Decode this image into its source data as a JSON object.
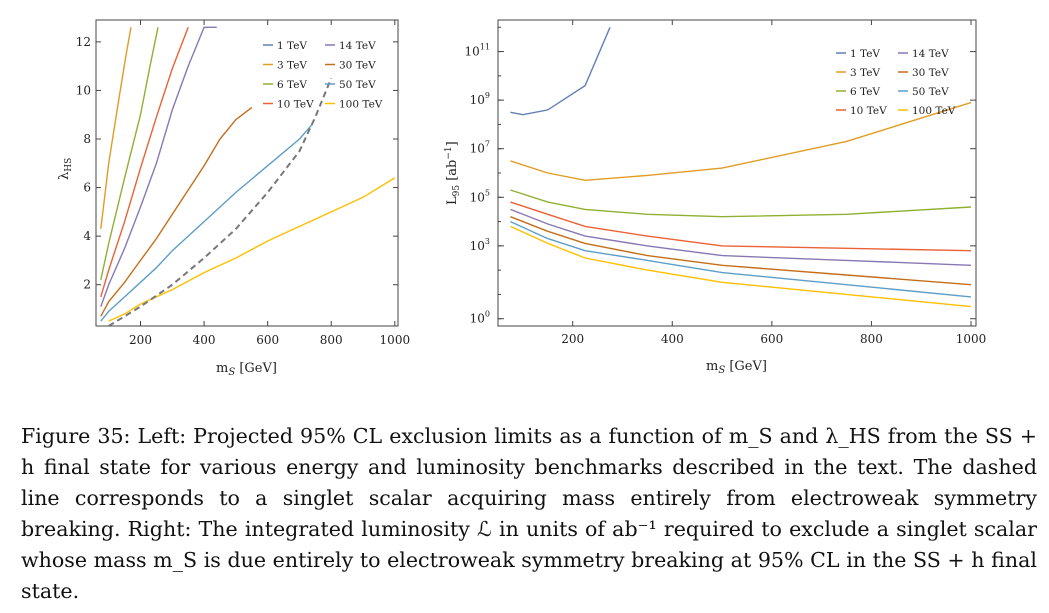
{
  "colors": {
    "1 TeV": "#5e81b5",
    "3 TeV": "#e19c24",
    "6 TeV": "#8fb032",
    "10 TeV": "#eb6235",
    "14 TeV": "#8778b3",
    "30 TeV": "#c56e1a",
    "50 TeV": "#5d9ec7",
    "100 TeV": "#ffbf00",
    "ewsb": "#777777"
  },
  "legend_labels": {
    "left": [
      "1 TeV",
      "14 TeV",
      "3 TeV",
      "30 TeV",
      "6 TeV",
      "50 TeV",
      "10 TeV",
      "100 TeV"
    ],
    "right": [
      "1 TeV",
      "14 TeV",
      "3 TeV",
      "30 TeV",
      "6 TeV",
      "50 TeV",
      "10 TeV",
      "100 TeV"
    ]
  },
  "chart_data": [
    {
      "type": "line",
      "xlabel": "m_S [GeV]",
      "ylabel": "λ_HS",
      "xlim": [
        60,
        1010
      ],
      "ylim": [
        0.3,
        12.9
      ],
      "xticks": [
        "200",
        "400",
        "600",
        "800",
        "1000"
      ],
      "yticks": [
        "2",
        "4",
        "6",
        "8",
        "10",
        "12"
      ],
      "legend_position": "top-right",
      "series": [
        {
          "name": "1 TeV",
          "x": [],
          "y": []
        },
        {
          "name": "3 TeV",
          "x": [
            75,
            100,
            130,
            155,
            170
          ],
          "y": [
            4.3,
            7.0,
            9.5,
            11.5,
            12.6
          ]
        },
        {
          "name": "6 TeV",
          "x": [
            75,
            100,
            150,
            200,
            230,
            255
          ],
          "y": [
            2.2,
            3.7,
            6.4,
            9.0,
            11.0,
            12.6
          ]
        },
        {
          "name": "10 TeV",
          "x": [
            75,
            100,
            150,
            200,
            250,
            300,
            350
          ],
          "y": [
            1.5,
            2.6,
            4.6,
            6.8,
            8.9,
            10.9,
            12.6
          ]
        },
        {
          "name": "14 TeV",
          "x": [
            75,
            100,
            150,
            200,
            250,
            300,
            350,
            400,
            440
          ],
          "y": [
            1.1,
            2.0,
            3.5,
            5.2,
            7.0,
            9.2,
            11.0,
            12.6,
            12.6
          ]
        },
        {
          "name": "30 TeV",
          "x": [
            75,
            100,
            150,
            200,
            250,
            300,
            350,
            400,
            450,
            500,
            550
          ],
          "y": [
            0.7,
            1.3,
            2.1,
            3.0,
            3.9,
            4.9,
            5.9,
            6.9,
            8.0,
            8.8,
            9.3
          ]
        },
        {
          "name": "50 TeV",
          "x": [
            75,
            100,
            150,
            200,
            250,
            300,
            350,
            400,
            500,
            600,
            700,
            740
          ],
          "y": [
            0.5,
            0.9,
            1.5,
            2.1,
            2.7,
            3.4,
            4.0,
            4.6,
            5.8,
            6.9,
            8.0,
            8.6
          ]
        },
        {
          "name": "100 TeV",
          "x": [
            100,
            150,
            200,
            250,
            300,
            400,
            500,
            600,
            700,
            800,
            900,
            1000
          ],
          "y": [
            0.5,
            0.8,
            1.2,
            1.5,
            1.8,
            2.5,
            3.1,
            3.8,
            4.4,
            5.0,
            5.6,
            6.4
          ]
        },
        {
          "name": "EWSB (dashed)",
          "x": [
            100,
            200,
            300,
            400,
            500,
            600,
            700,
            750,
            800
          ],
          "y": [
            0.3,
            1.1,
            2.0,
            3.1,
            4.3,
            5.8,
            7.5,
            8.9,
            10.5
          ]
        }
      ]
    },
    {
      "type": "line",
      "xlabel": "m_S [GeV]",
      "ylabel": "L_95 [ab^-1]",
      "yscale": "log",
      "xlim": [
        50,
        1010
      ],
      "ylim_log10": [
        -0.3,
        12.3
      ],
      "xticks": [
        "200",
        "400",
        "600",
        "800",
        "1000"
      ],
      "yticks": [
        "10^0",
        "10^3",
        "10^5",
        "10^7",
        "10^9",
        "10^11"
      ],
      "legend_position": "top-right",
      "series": [
        {
          "name": "1 TeV",
          "x": [
            75,
            100,
            150,
            225,
            275
          ],
          "log10_y": [
            8.5,
            8.4,
            8.6,
            9.6,
            12.0
          ]
        },
        {
          "name": "3 TeV",
          "x": [
            75,
            150,
            225,
            350,
            500,
            750,
            1000
          ],
          "log10_y": [
            6.5,
            6.0,
            5.7,
            5.9,
            6.2,
            7.3,
            8.9
          ]
        },
        {
          "name": "6 TeV",
          "x": [
            75,
            150,
            225,
            350,
            500,
            750,
            1000
          ],
          "log10_y": [
            5.3,
            4.8,
            4.5,
            4.3,
            4.2,
            4.3,
            4.6
          ]
        },
        {
          "name": "10 TeV",
          "x": [
            75,
            150,
            225,
            350,
            500,
            750,
            1000
          ],
          "log10_y": [
            4.8,
            4.3,
            3.8,
            3.4,
            3.0,
            2.9,
            2.8
          ]
        },
        {
          "name": "14 TeV",
          "x": [
            75,
            150,
            225,
            350,
            500,
            750,
            1000
          ],
          "log10_y": [
            4.5,
            3.9,
            3.4,
            3.0,
            2.6,
            2.4,
            2.2
          ]
        },
        {
          "name": "30 TeV",
          "x": [
            75,
            150,
            225,
            350,
            500,
            750,
            1000
          ],
          "log10_y": [
            4.2,
            3.6,
            3.1,
            2.6,
            2.2,
            1.8,
            1.4
          ]
        },
        {
          "name": "50 TeV",
          "x": [
            75,
            150,
            225,
            350,
            500,
            750,
            1000
          ],
          "log10_y": [
            4.0,
            3.3,
            2.8,
            2.4,
            1.9,
            1.4,
            0.9
          ]
        },
        {
          "name": "100 TeV",
          "x": [
            75,
            150,
            225,
            350,
            500,
            750,
            1000
          ],
          "log10_y": [
            3.8,
            3.1,
            2.5,
            2.0,
            1.5,
            1.0,
            0.5
          ]
        }
      ]
    }
  ],
  "caption": {
    "lines": [
      "Figure 35: Left: Projected 95% CL exclusion limits as a function of m_S and λ_HS from",
      "the SS + h final state for various energy and luminosity benchmarks described in the text.",
      "The dashed line corresponds to a singlet scalar acquiring mass entirely from electroweak",
      "symmetry breaking. Right: The integrated luminosity ℒ in units of ab⁻¹ required to exclude",
      "a singlet scalar whose mass m_S is due entirely to electroweak symmetry breaking at 95% CL",
      "in the SS + h final state."
    ]
  }
}
